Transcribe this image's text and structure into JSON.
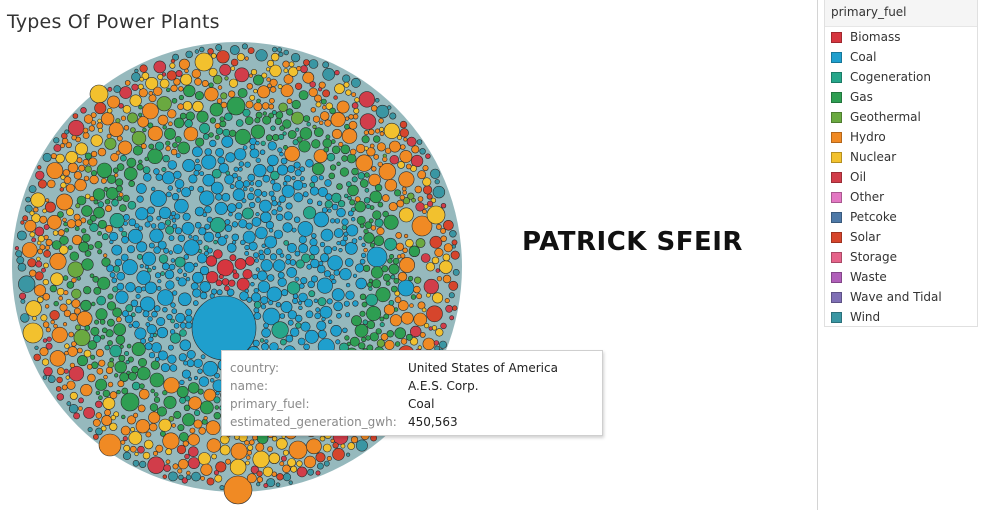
{
  "title": "Types Of Power Plants",
  "author_label": "PATRICK SFEIR",
  "legend": {
    "title": "primary_fuel",
    "items": [
      {
        "label": "Biomass",
        "color": "#d6363f"
      },
      {
        "label": "Coal",
        "color": "#1f9fcd"
      },
      {
        "label": "Cogeneration",
        "color": "#26a68a"
      },
      {
        "label": "Gas",
        "color": "#2e9e52"
      },
      {
        "label": "Geothermal",
        "color": "#6aa940"
      },
      {
        "label": "Hydro",
        "color": "#f08a24"
      },
      {
        "label": "Nuclear",
        "color": "#f2c12e"
      },
      {
        "label": "Oil",
        "color": "#d13d4a"
      },
      {
        "label": "Other",
        "color": "#e377c2"
      },
      {
        "label": "Petcoke",
        "color": "#4e79a7"
      },
      {
        "label": "Solar",
        "color": "#d6452c"
      },
      {
        "label": "Storage",
        "color": "#e5638a"
      },
      {
        "label": "Waste",
        "color": "#b05fb9"
      },
      {
        "label": "Wave and Tidal",
        "color": "#7f6fb5"
      },
      {
        "label": "Wind",
        "color": "#3a96a3"
      }
    ]
  },
  "tooltip": {
    "rows": [
      {
        "key": "country:",
        "value": "United States of America"
      },
      {
        "key": "name:",
        "value": "A.E.S. Corp."
      },
      {
        "key": "primary_fuel:",
        "value": "Coal"
      },
      {
        "key": "estimated_generation_gwh:",
        "value": "450,563"
      }
    ]
  },
  "chart_data": {
    "type": "packed-bubble",
    "title": "Types Of Power Plants",
    "color_field": "primary_fuel",
    "size_field": "estimated_generation_gwh",
    "series": [
      {
        "name": "Biomass"
      },
      {
        "name": "Coal"
      },
      {
        "name": "Cogeneration"
      },
      {
        "name": "Gas"
      },
      {
        "name": "Geothermal"
      },
      {
        "name": "Hydro"
      },
      {
        "name": "Nuclear"
      },
      {
        "name": "Oil"
      },
      {
        "name": "Other"
      },
      {
        "name": "Petcoke"
      },
      {
        "name": "Solar"
      },
      {
        "name": "Storage"
      },
      {
        "name": "Waste"
      },
      {
        "name": "Wave and Tidal"
      },
      {
        "name": "Wind"
      }
    ],
    "highlighted_point": {
      "country": "United States of America",
      "name": "A.E.S. Corp.",
      "primary_fuel": "Coal",
      "estimated_generation_gwh": 450563
    }
  }
}
